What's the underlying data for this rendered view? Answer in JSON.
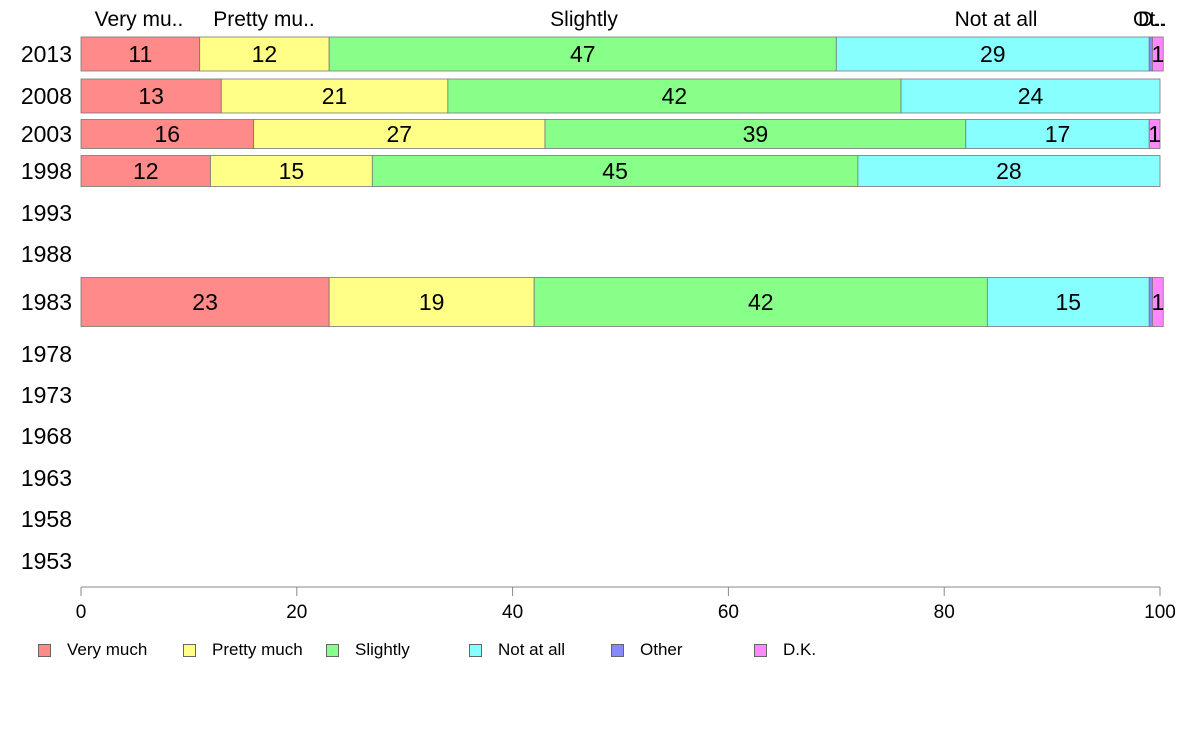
{
  "chart_data": {
    "type": "bar",
    "orientation": "horizontal",
    "stacked": true,
    "categories": [
      "2013",
      "2008",
      "2003",
      "1998",
      "1993",
      "1988",
      "1983",
      "1978",
      "1973",
      "1968",
      "1963",
      "1958",
      "1953"
    ],
    "series": [
      {
        "name": "Very much",
        "values": [
          11,
          13,
          16,
          12,
          null,
          null,
          23,
          null,
          null,
          null,
          null,
          null,
          null
        ]
      },
      {
        "name": "Pretty much",
        "values": [
          12,
          21,
          27,
          15,
          null,
          null,
          19,
          null,
          null,
          null,
          null,
          null,
          null
        ]
      },
      {
        "name": "Slightly",
        "values": [
          47,
          42,
          39,
          45,
          null,
          null,
          42,
          null,
          null,
          null,
          null,
          null,
          null
        ]
      },
      {
        "name": "Not at all",
        "values": [
          29,
          24,
          17,
          28,
          null,
          null,
          15,
          null,
          null,
          null,
          null,
          null,
          null
        ]
      },
      {
        "name": "Other",
        "values": [
          0.3,
          0,
          0,
          0,
          null,
          null,
          0.3,
          null,
          null,
          null,
          null,
          null,
          null
        ]
      },
      {
        "name": "D.K.",
        "values": [
          1,
          0,
          1,
          0,
          null,
          null,
          1,
          null,
          null,
          null,
          null,
          null,
          null
        ]
      }
    ],
    "top_labels": [
      "Very mu..",
      "Pretty mu..",
      "Slightly",
      "Not at all",
      "Ot..",
      "D.."
    ],
    "x_ticks": [
      "0",
      "20",
      "40",
      "60",
      "80",
      "100"
    ],
    "xlim": [
      0,
      100
    ],
    "grid": false,
    "legend_position": "bottom-left"
  },
  "colors": {
    "Very much": "#ff8a8a",
    "Pretty much": "#ffff88",
    "Slightly": "#88ff88",
    "Not at all": "#88ffff",
    "Other": "#8888ff",
    "D.K.": "#ff88ff"
  },
  "legend": {
    "items": [
      "Very much",
      "Pretty much",
      "Slightly",
      "Not at all",
      "Other",
      "D.K."
    ]
  }
}
